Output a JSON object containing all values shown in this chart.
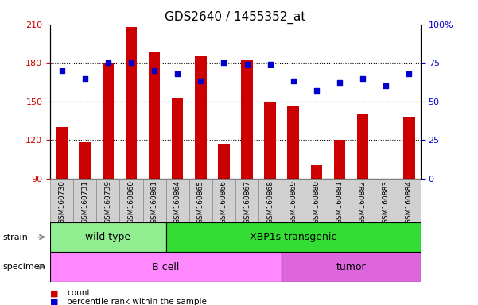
{
  "title": "GDS2640 / 1455352_at",
  "samples": [
    "GSM160730",
    "GSM160731",
    "GSM160739",
    "GSM160860",
    "GSM160861",
    "GSM160864",
    "GSM160865",
    "GSM160866",
    "GSM160867",
    "GSM160868",
    "GSM160869",
    "GSM160880",
    "GSM160881",
    "GSM160882",
    "GSM160883",
    "GSM160884"
  ],
  "counts": [
    130,
    118,
    180,
    208,
    188,
    152,
    185,
    117,
    182,
    150,
    147,
    100,
    120,
    140,
    90,
    138
  ],
  "percentiles": [
    70,
    65,
    75,
    75,
    70,
    68,
    63,
    75,
    74,
    74,
    63,
    57,
    62,
    65,
    60,
    68
  ],
  "ylim_left": [
    90,
    210
  ],
  "ylim_right": [
    0,
    100
  ],
  "yticks_left": [
    90,
    120,
    150,
    180,
    210
  ],
  "yticks_right": [
    0,
    25,
    50,
    75,
    100
  ],
  "bar_color": "#cc0000",
  "dot_color": "#0000cc",
  "label_bg_color": "#d0d0d0",
  "strain_groups": [
    {
      "label": "wild type",
      "start": 0,
      "end": 5,
      "color": "#90ee90"
    },
    {
      "label": "XBP1s transgenic",
      "start": 5,
      "end": 16,
      "color": "#33dd33"
    }
  ],
  "specimen_groups": [
    {
      "label": "B cell",
      "start": 0,
      "end": 10,
      "color": "#ff88ff"
    },
    {
      "label": "tumor",
      "start": 10,
      "end": 16,
      "color": "#dd66dd"
    }
  ],
  "strain_label": "strain",
  "specimen_label": "specimen",
  "legend_count_label": "count",
  "legend_pct_label": "percentile rank within the sample",
  "title_fontsize": 11,
  "axis_fontsize": 8,
  "tick_fontsize": 6.5,
  "label_fontsize": 9,
  "group_label_fontsize": 8
}
